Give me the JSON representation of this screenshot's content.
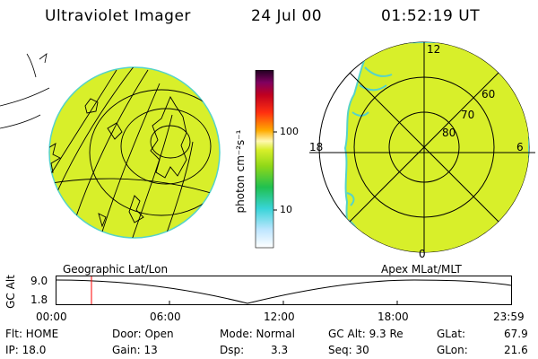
{
  "header": {
    "title": "Ultraviolet Imager",
    "date": "24 Jul 00",
    "time": "01:52:19 UT"
  },
  "colorbar": {
    "unit_label": "photon cm⁻²s⁻¹",
    "tick_100": "100",
    "tick_10": "10"
  },
  "polar_labels": {
    "lat_60": "60",
    "lat_70": "70",
    "lat_80": "80",
    "mlt_12": "12",
    "mlt_18": "18",
    "mlt_6": "6",
    "mlt_0": "0"
  },
  "timeline": {
    "left_caption": "Geographic Lat/Lon",
    "right_caption": "Apex MLat/MLT",
    "ylabel": "GC Alt",
    "ytick_top": "9.0",
    "ytick_bottom": "1.8",
    "xticks": [
      "00:00",
      "06:00",
      "12:00",
      "18:00",
      "23:59"
    ],
    "marker_time": "01:52:19"
  },
  "info": {
    "flt": "Flt: HOME",
    "ip": "IP: 18.0",
    "door": "Door: Open",
    "gain": "Gain: 13",
    "mode": "Mode: Normal",
    "dsp_label": "Dsp:",
    "dsp_value": "3.3",
    "gcalt": "GC Alt: 9.3 Re",
    "seq": "Seq: 30",
    "glat_label": "GLat:",
    "glat_value": "67.9",
    "glon_label": "GLon:",
    "glon_value": "21.6"
  },
  "colors": {
    "image_fill": "#d8ef2a",
    "image_edge": "#56d3c8",
    "marker": "#ff0000"
  }
}
